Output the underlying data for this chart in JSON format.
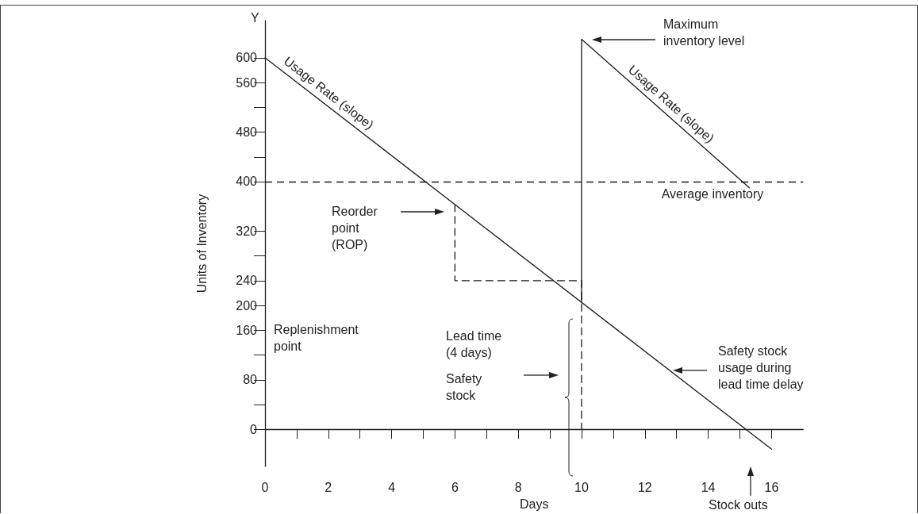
{
  "chart_data": {
    "type": "line",
    "xlabel": "Days",
    "ylabel": "Units of Inventory",
    "xlim": [
      0,
      17
    ],
    "xticks": [
      0,
      {
        "value": 1,
        "label": null
      },
      2,
      {
        "value": 3,
        "label": null
      },
      4,
      {
        "value": 5,
        "label": null
      },
      6,
      {
        "value": 7,
        "label": null
      },
      8,
      {
        "value": 9,
        "label": null
      },
      10,
      {
        "value": 11,
        "label": null
      },
      12,
      {
        "value": 13,
        "label": null
      },
      14,
      {
        "value": 15,
        "label": null
      },
      16
    ],
    "ylim": [
      -60,
      660
    ],
    "yticks": [
      0,
      {
        "value": 40,
        "label": null
      },
      80,
      {
        "value": 120,
        "label": null
      },
      160,
      200,
      240,
      {
        "value": 280,
        "label": null
      },
      320,
      400,
      {
        "value": 440,
        "label": null
      },
      480,
      {
        "value": 520,
        "label": null
      },
      560,
      600
    ],
    "series": [
      {
        "color": "#1a1a1a",
        "line_style": "solid",
        "x": [
          0,
          16
        ],
        "values": [
          600,
          -32
        ]
      },
      {
        "color": "#1a1a1a",
        "line_style": "solid",
        "x": [
          10,
          10,
          15.3
        ],
        "values": [
          205,
          630,
          390
        ]
      },
      {
        "color": "#1a1a1a",
        "line_style": "dashed",
        "x": [
          6,
          6,
          10,
          10
        ],
        "values": [
          363,
          240,
          240,
          0
        ]
      }
    ],
    "ref_lines": [
      {
        "axis": "y",
        "value": 400,
        "label": "Average inventory",
        "line_style": "dashed",
        "color": "#1a1a1a"
      }
    ],
    "annotations": [
      "Y",
      {
        "text": "Usage Rate (slope)",
        "x": 1.8,
        "y": 529
      },
      {
        "text": "Usage Rate (slope)",
        "x": 12.6,
        "y": 512
      },
      "Reorder point (ROP)",
      "Maximum inventory level",
      "Replenishment point",
      "Lead time (4 days)",
      "Safety stock",
      "Safety stock usage during lead time delay",
      "Stock outs"
    ],
    "marker": "none"
  }
}
